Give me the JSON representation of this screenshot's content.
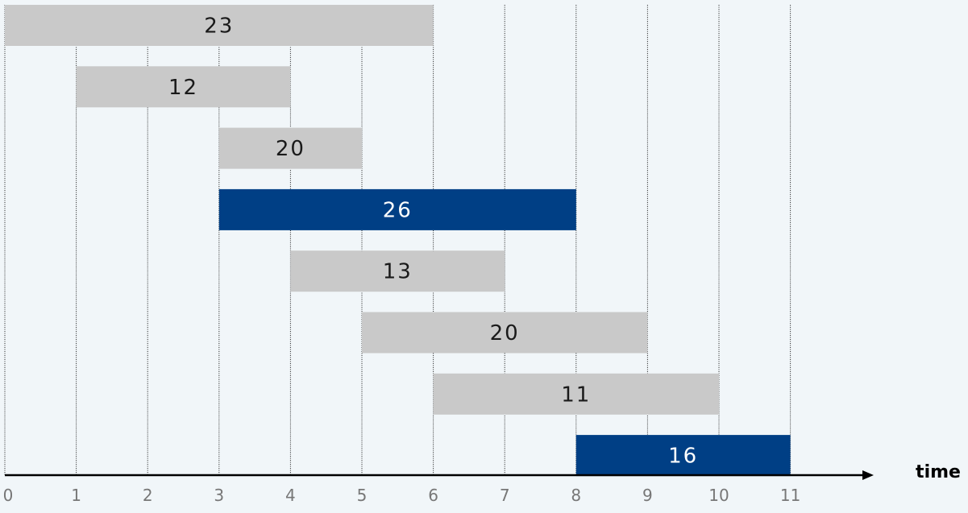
{
  "chart_data": {
    "type": "gantt",
    "x_axis": {
      "label": "time",
      "ticks": [
        "0",
        "1",
        "2",
        "3",
        "4",
        "5",
        "6",
        "7",
        "8",
        "9",
        "10",
        "11"
      ],
      "range": [
        0,
        12
      ]
    },
    "grid": "vertical dotted lines at each integer tick",
    "intervals": [
      {
        "label": "23",
        "start": 0,
        "end": 6,
        "selected": false
      },
      {
        "label": "12",
        "start": 1,
        "end": 4,
        "selected": false
      },
      {
        "label": "20",
        "start": 3,
        "end": 5,
        "selected": false
      },
      {
        "label": "26",
        "start": 3,
        "end": 8,
        "selected": true
      },
      {
        "label": "13",
        "start": 4,
        "end": 7,
        "selected": false
      },
      {
        "label": "20",
        "start": 5,
        "end": 9,
        "selected": false
      },
      {
        "label": "11",
        "start": 6,
        "end": 10,
        "selected": false
      },
      {
        "label": "16",
        "start": 8,
        "end": 11,
        "selected": true
      }
    ]
  },
  "colors": {
    "background": "#f1f6f9",
    "interval_default": "#c9c9c9",
    "interval_selected": "#003f85",
    "text_default": "#1a1a1a",
    "text_selected": "#ffffff",
    "tick_label": "#777777",
    "axis": "#000000"
  }
}
